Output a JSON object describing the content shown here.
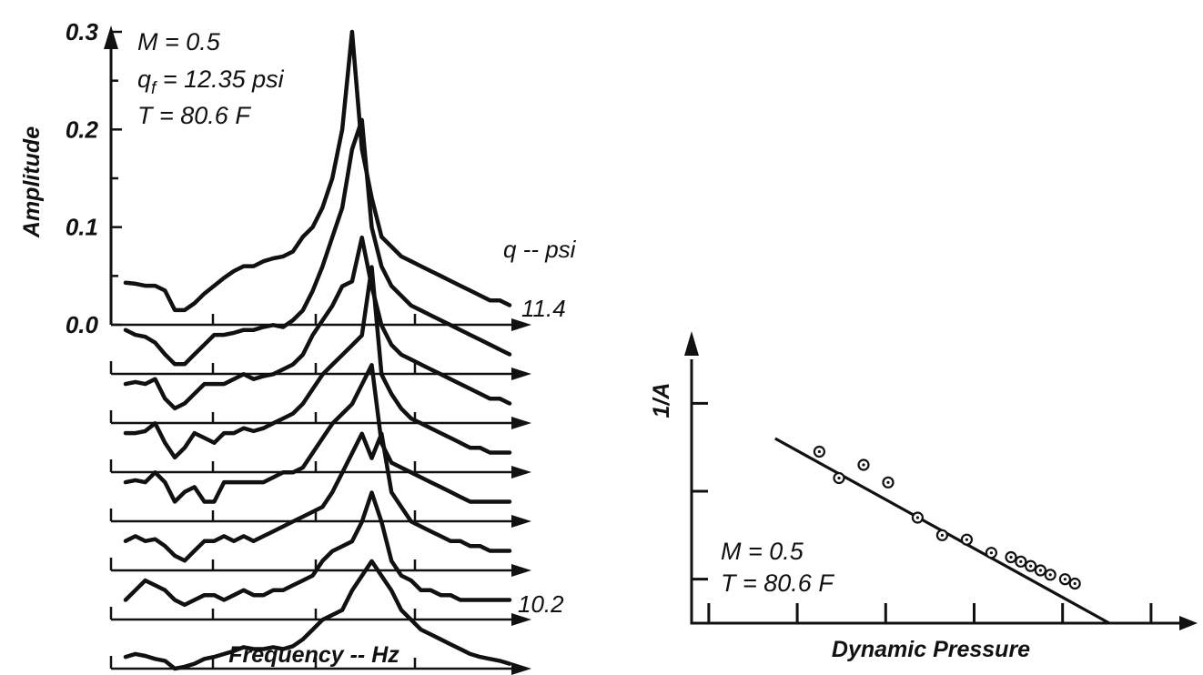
{
  "chart_data": [
    {
      "type": "line",
      "panel": "waterfall-spectra",
      "xlabel": "Frequency -- Hz",
      "ylabel": "Amplitude",
      "ylim": [
        0,
        0.3
      ],
      "yticks": [
        "0.0",
        "0.1",
        "0.2",
        "0.3"
      ],
      "x": [
        0,
        0.5,
        1,
        1.5,
        2,
        2.5,
        3,
        3.5,
        4,
        4.5,
        5,
        5.5,
        6,
        6.5,
        7,
        7.5,
        8,
        8.5,
        9,
        9.5,
        10,
        10.5,
        11,
        11.5,
        12,
        12.5,
        13,
        13.5,
        14,
        14.5,
        15,
        15.5,
        16,
        16.5,
        17,
        17.5,
        18,
        18.5,
        19,
        19.5
      ],
      "legend_title": "q -- psi",
      "annotation": [
        "M = 0.5",
        "q",
        "f",
        " = 12.35 psi",
        "T = 80.6  F"
      ],
      "series": [
        {
          "name": "11.4",
          "values": [
            0.043,
            0.042,
            0.04,
            0.04,
            0.035,
            0.015,
            0.015,
            0.022,
            0.032,
            0.04,
            0.048,
            0.055,
            0.06,
            0.06,
            0.065,
            0.068,
            0.07,
            0.075,
            0.09,
            0.1,
            0.12,
            0.15,
            0.2,
            0.3,
            0.18,
            0.13,
            0.09,
            0.08,
            0.07,
            0.065,
            0.06,
            0.055,
            0.05,
            0.045,
            0.04,
            0.035,
            0.03,
            0.025,
            0.025,
            0.02
          ]
        },
        {
          "values": [
            0.045,
            0.04,
            0.038,
            0.032,
            0.02,
            0.01,
            0.01,
            0.02,
            0.03,
            0.04,
            0.04,
            0.042,
            0.045,
            0.045,
            0.048,
            0.05,
            0.048,
            0.055,
            0.065,
            0.085,
            0.11,
            0.14,
            0.17,
            0.23,
            0.26,
            0.15,
            0.11,
            0.09,
            0.08,
            0.07,
            0.065,
            0.06,
            0.055,
            0.05,
            0.045,
            0.04,
            0.035,
            0.03,
            0.025,
            0.02
          ]
        },
        {
          "values": [
            0.04,
            0.042,
            0.04,
            0.045,
            0.025,
            0.015,
            0.02,
            0.03,
            0.04,
            0.04,
            0.04,
            0.045,
            0.05,
            0.045,
            0.048,
            0.05,
            0.055,
            0.06,
            0.07,
            0.09,
            0.105,
            0.12,
            0.14,
            0.145,
            0.19,
            0.14,
            0.1,
            0.08,
            0.07,
            0.065,
            0.06,
            0.055,
            0.05,
            0.045,
            0.04,
            0.035,
            0.03,
            0.025,
            0.025,
            0.02
          ]
        },
        {
          "values": [
            0.04,
            0.04,
            0.042,
            0.05,
            0.03,
            0.015,
            0.025,
            0.04,
            0.035,
            0.03,
            0.04,
            0.04,
            0.045,
            0.042,
            0.045,
            0.05,
            0.055,
            0.06,
            0.07,
            0.085,
            0.1,
            0.11,
            0.12,
            0.13,
            0.14,
            0.21,
            0.1,
            0.08,
            0.065,
            0.055,
            0.05,
            0.045,
            0.04,
            0.035,
            0.03,
            0.025,
            0.025,
            0.02,
            0.02,
            0.02
          ]
        },
        {
          "values": [
            0.04,
            0.042,
            0.04,
            0.05,
            0.04,
            0.02,
            0.03,
            0.035,
            0.02,
            0.02,
            0.04,
            0.04,
            0.04,
            0.04,
            0.04,
            0.045,
            0.05,
            0.05,
            0.055,
            0.07,
            0.085,
            0.1,
            0.11,
            0.12,
            0.14,
            0.16,
            0.08,
            0.06,
            0.055,
            0.05,
            0.045,
            0.04,
            0.035,
            0.03,
            0.025,
            0.02,
            0.02,
            0.02,
            0.02,
            0.02
          ]
        },
        {
          "values": [
            0.03,
            0.035,
            0.03,
            0.032,
            0.025,
            0.015,
            0.01,
            0.02,
            0.03,
            0.03,
            0.035,
            0.03,
            0.035,
            0.03,
            0.035,
            0.04,
            0.045,
            0.05,
            0.055,
            0.06,
            0.065,
            0.08,
            0.1,
            0.12,
            0.14,
            0.115,
            0.14,
            0.08,
            0.065,
            0.05,
            0.045,
            0.04,
            0.035,
            0.03,
            0.03,
            0.025,
            0.025,
            0.02,
            0.02,
            0.02
          ]
        },
        {
          "values": [
            0.02,
            0.03,
            0.04,
            0.035,
            0.03,
            0.02,
            0.015,
            0.02,
            0.025,
            0.025,
            0.02,
            0.025,
            0.03,
            0.025,
            0.025,
            0.03,
            0.03,
            0.035,
            0.04,
            0.045,
            0.06,
            0.07,
            0.075,
            0.08,
            0.1,
            0.13,
            0.1,
            0.06,
            0.045,
            0.04,
            0.03,
            0.03,
            0.025,
            0.025,
            0.02,
            0.02,
            0.02,
            0.02,
            0.02,
            0.02
          ]
        },
        {
          "name": "10.2",
          "values": [
            0.012,
            0.015,
            0.013,
            0.01,
            0.008,
            0.0,
            0.002,
            0.005,
            0.01,
            0.012,
            0.015,
            0.018,
            0.022,
            0.02,
            0.02,
            0.022,
            0.02,
            0.023,
            0.03,
            0.04,
            0.05,
            0.055,
            0.06,
            0.08,
            0.095,
            0.11,
            0.095,
            0.08,
            0.06,
            0.05,
            0.04,
            0.035,
            0.03,
            0.025,
            0.02,
            0.015,
            0.012,
            0.01,
            0.008,
            0.005
          ]
        }
      ]
    },
    {
      "type": "scatter",
      "panel": "inverse-amplitude",
      "xlabel": "Dynamic Pressure",
      "ylabel": "1/A",
      "annotation": [
        "M = 0.5",
        "T = 80.6  F"
      ],
      "xlim": [
        0,
        10
      ],
      "ylim": [
        0,
        6
      ],
      "points": [
        {
          "x": 2.6,
          "y": 3.9
        },
        {
          "x": 3.0,
          "y": 3.3
        },
        {
          "x": 3.5,
          "y": 3.6
        },
        {
          "x": 4.0,
          "y": 3.2
        },
        {
          "x": 4.6,
          "y": 2.4
        },
        {
          "x": 5.1,
          "y": 2.0
        },
        {
          "x": 5.6,
          "y": 1.9
        },
        {
          "x": 6.1,
          "y": 1.6
        },
        {
          "x": 6.5,
          "y": 1.5
        },
        {
          "x": 6.7,
          "y": 1.4
        },
        {
          "x": 6.9,
          "y": 1.3
        },
        {
          "x": 7.1,
          "y": 1.2
        },
        {
          "x": 7.3,
          "y": 1.1
        },
        {
          "x": 7.6,
          "y": 1.0
        },
        {
          "x": 7.8,
          "y": 0.9
        }
      ],
      "fit_line": {
        "x": [
          1.7,
          8.5
        ],
        "y": [
          4.2,
          0.0
        ]
      }
    }
  ]
}
